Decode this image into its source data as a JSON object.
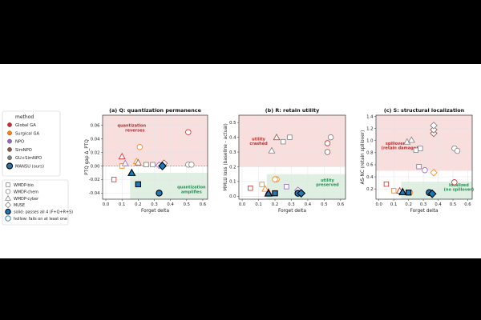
{
  "method_legend": {
    "title": "method",
    "items": [
      {
        "name": "Global GA",
        "color": "#d62728"
      },
      {
        "name": "Surgical GA",
        "color": "#ff7f0e"
      },
      {
        "name": "NPO",
        "color": "#9467bd"
      },
      {
        "name": "SimNPO",
        "color": "#8c564b"
      },
      {
        "name": "GU+SimNPO",
        "color": "#7f7f7f"
      },
      {
        "name": "MANSU (ours)",
        "color": "#1f77b4"
      }
    ]
  },
  "marker_legend": {
    "items": [
      {
        "name": "WMDP-bio",
        "marker": "square"
      },
      {
        "name": "WMDP-chem",
        "marker": "circle"
      },
      {
        "name": "WMDP-cyber",
        "marker": "triangle"
      },
      {
        "name": "MUSE",
        "marker": "diamond"
      },
      {
        "name": "solid: passes all 4 (F+Q+R+S)",
        "marker": "solid"
      },
      {
        "name": "hollow: fails on at least one",
        "marker": "hollow"
      }
    ]
  },
  "chart_data": [
    {
      "type": "scatter",
      "title": "(a) Q: quantization permanence",
      "xlabel": "Forget delta",
      "ylabel": "PTQ gap Δ_PTQ",
      "xlim": [
        -0.02,
        0.63
      ],
      "ylim": [
        -0.049,
        0.075
      ],
      "xticks": [
        0.0,
        0.1,
        0.2,
        0.3,
        0.4,
        0.5,
        0.6
      ],
      "yticks": [
        -0.04,
        -0.02,
        0.0,
        0.02,
        0.04,
        0.06
      ],
      "zero_line": 0,
      "region_upper": {
        "y_from": 0,
        "color": "#f9dede"
      },
      "region_lower": {
        "x_from": 0.15,
        "y_to": -0.01,
        "color": "#dff0e2"
      },
      "annotations": [
        {
          "text": "quantization",
          "x": 0.16,
          "y": 0.058,
          "color": "#b03030"
        },
        {
          "text": "reverses",
          "x": 0.18,
          "y": 0.051,
          "color": "#b03030"
        },
        {
          "text": "quantization",
          "x": 0.53,
          "y": -0.033,
          "color": "#2e8b57"
        },
        {
          "text": "amplifies",
          "x": 0.53,
          "y": -0.04,
          "color": "#2e8b57"
        }
      ],
      "points": [
        {
          "x": 0.05,
          "y": -0.02,
          "color": "#d62728",
          "marker": "square",
          "solid": false
        },
        {
          "x": 0.1,
          "y": 0.014,
          "color": "#d62728",
          "marker": "triangle",
          "solid": false
        },
        {
          "x": 0.51,
          "y": 0.05,
          "color": "#d62728",
          "marker": "circle",
          "solid": false
        },
        {
          "x": 0.1,
          "y": 0.0,
          "color": "#ff7f0e",
          "marker": "square",
          "solid": false
        },
        {
          "x": 0.21,
          "y": 0.028,
          "color": "#ff7f0e",
          "marker": "circle",
          "solid": false
        },
        {
          "x": 0.19,
          "y": 0.007,
          "color": "#ff7f0e",
          "marker": "triangle",
          "solid": false
        },
        {
          "x": 0.12,
          "y": 0.004,
          "color": "#9467bd",
          "marker": "triangle",
          "solid": false
        },
        {
          "x": 0.33,
          "y": 0.001,
          "color": "#9467bd",
          "marker": "diamond",
          "solid": false
        },
        {
          "x": 0.2,
          "y": 0.005,
          "color": "#8c564b",
          "marker": "triangle",
          "solid": false
        },
        {
          "x": 0.36,
          "y": 0.004,
          "color": "#8c564b",
          "marker": "diamond",
          "solid": false
        },
        {
          "x": 0.25,
          "y": 0.002,
          "color": "#7f7f7f",
          "marker": "square",
          "solid": false
        },
        {
          "x": 0.29,
          "y": 0.002,
          "color": "#7f7f7f",
          "marker": "square",
          "solid": false
        },
        {
          "x": 0.51,
          "y": 0.002,
          "color": "#7f7f7f",
          "marker": "circle",
          "solid": false
        },
        {
          "x": 0.53,
          "y": 0.002,
          "color": "#7f7f7f",
          "marker": "circle",
          "solid": false
        },
        {
          "x": 0.16,
          "y": -0.01,
          "color": "#1f77b4",
          "marker": "triangle",
          "solid": true
        },
        {
          "x": 0.2,
          "y": -0.027,
          "color": "#1f77b4",
          "marker": "square",
          "solid": true
        },
        {
          "x": 0.33,
          "y": -0.04,
          "color": "#1f77b4",
          "marker": "circle",
          "solid": true
        },
        {
          "x": 0.35,
          "y": 0.0,
          "color": "#1f77b4",
          "marker": "diamond",
          "solid": true
        }
      ]
    },
    {
      "type": "scatter",
      "title": "(b) R: retain utility",
      "xlabel": "Forget delta",
      "ylabel": "MMLU loss (baseline - actual)",
      "xlim": [
        -0.02,
        0.63
      ],
      "ylim": [
        -0.02,
        0.55
      ],
      "xticks": [
        0.0,
        0.1,
        0.2,
        0.3,
        0.4,
        0.5,
        0.6
      ],
      "yticks": [
        0.0,
        0.1,
        0.2,
        0.3,
        0.4,
        0.5
      ],
      "zero_line": null,
      "region_upper": {
        "y_from": 0.2,
        "color": "#f9dede"
      },
      "region_lower": {
        "x_from": 0.15,
        "y_to": 0.15,
        "color": "#dff0e2"
      },
      "annotations": [
        {
          "text": "utility",
          "x": 0.1,
          "y": 0.38,
          "color": "#b03030"
        },
        {
          "text": "crashed",
          "x": 0.1,
          "y": 0.35,
          "color": "#b03030"
        },
        {
          "text": "utility",
          "x": 0.52,
          "y": 0.1,
          "color": "#2e8b57"
        },
        {
          "text": "preserved",
          "x": 0.52,
          "y": 0.07,
          "color": "#2e8b57"
        }
      ],
      "points": [
        {
          "x": 0.05,
          "y": 0.055,
          "color": "#d62728",
          "marker": "square",
          "solid": false
        },
        {
          "x": 0.16,
          "y": 0.03,
          "color": "#d62728",
          "marker": "triangle",
          "solid": false
        },
        {
          "x": 0.52,
          "y": 0.36,
          "color": "#d62728",
          "marker": "circle",
          "solid": false
        },
        {
          "x": 0.12,
          "y": 0.08,
          "color": "#ff7f0e",
          "marker": "square",
          "solid": false
        },
        {
          "x": 0.21,
          "y": 0.115,
          "color": "#ff7f0e",
          "marker": "circle",
          "solid": false
        },
        {
          "x": 0.2,
          "y": 0.115,
          "color": "#ff7f0e",
          "marker": "circle",
          "solid": false
        },
        {
          "x": 0.14,
          "y": 0.05,
          "color": "#ff7f0e",
          "marker": "triangle",
          "solid": false
        },
        {
          "x": 0.27,
          "y": 0.065,
          "color": "#9467bd",
          "marker": "square",
          "solid": false
        },
        {
          "x": 0.34,
          "y": 0.04,
          "color": "#9467bd",
          "marker": "diamond",
          "solid": false
        },
        {
          "x": 0.21,
          "y": 0.4,
          "color": "#8c564b",
          "marker": "triangle",
          "solid": false
        },
        {
          "x": 0.52,
          "y": 0.3,
          "color": "#8c564b",
          "marker": "circle",
          "solid": false
        },
        {
          "x": 0.18,
          "y": 0.31,
          "color": "#7f7f7f",
          "marker": "triangle",
          "solid": false
        },
        {
          "x": 0.25,
          "y": 0.37,
          "color": "#7f7f7f",
          "marker": "square",
          "solid": false
        },
        {
          "x": 0.29,
          "y": 0.4,
          "color": "#7f7f7f",
          "marker": "square",
          "solid": false
        },
        {
          "x": 0.54,
          "y": 0.4,
          "color": "#7f7f7f",
          "marker": "circle",
          "solid": false
        },
        {
          "x": 0.16,
          "y": 0.02,
          "color": "#1f77b4",
          "marker": "triangle",
          "solid": true
        },
        {
          "x": 0.2,
          "y": 0.02,
          "color": "#1f77b4",
          "marker": "square",
          "solid": true
        },
        {
          "x": 0.34,
          "y": 0.02,
          "color": "#1f77b4",
          "marker": "circle",
          "solid": true
        },
        {
          "x": 0.36,
          "y": 0.02,
          "color": "#1f77b4",
          "marker": "diamond",
          "solid": true
        }
      ]
    },
    {
      "type": "scatter",
      "title": "(c) S: structural localization",
      "xlabel": "Forget delta",
      "ylabel": "AS-NC (retain spillover)",
      "xlim": [
        -0.02,
        0.63
      ],
      "ylim": [
        0.03,
        1.42
      ],
      "xticks": [
        0.0,
        0.1,
        0.2,
        0.3,
        0.4,
        0.5,
        0.6
      ],
      "yticks": [
        0.2,
        0.4,
        0.6,
        0.8,
        1.0,
        1.2,
        1.4
      ],
      "zero_line": null,
      "region_upper": {
        "y_from": 0.5,
        "color": "#f9dede"
      },
      "region_lower": {
        "x_from": 0.15,
        "y_to": 0.32,
        "color": "#dff0e2"
      },
      "annotations": [
        {
          "text": "spillover",
          "x": 0.11,
          "y": 0.93,
          "color": "#b03030"
        },
        {
          "text": "(retain damage)",
          "x": 0.14,
          "y": 0.86,
          "color": "#b03030"
        },
        {
          "text": "localized",
          "x": 0.54,
          "y": 0.24,
          "color": "#2e8b57"
        },
        {
          "text": "(no spillover)",
          "x": 0.54,
          "y": 0.17,
          "color": "#2e8b57"
        }
      ],
      "points": [
        {
          "x": 0.05,
          "y": 0.28,
          "color": "#d62728",
          "marker": "square",
          "solid": false
        },
        {
          "x": 0.14,
          "y": 0.17,
          "color": "#d62728",
          "marker": "triangle",
          "solid": false
        },
        {
          "x": 0.51,
          "y": 0.31,
          "color": "#d62728",
          "marker": "circle",
          "solid": false
        },
        {
          "x": 0.1,
          "y": 0.17,
          "color": "#ff7f0e",
          "marker": "square",
          "solid": false
        },
        {
          "x": 0.21,
          "y": 0.14,
          "color": "#ff7f0e",
          "marker": "circle",
          "solid": false
        },
        {
          "x": 0.37,
          "y": 0.47,
          "color": "#ff7f0e",
          "marker": "diamond",
          "solid": false
        },
        {
          "x": 0.27,
          "y": 0.57,
          "color": "#9467bd",
          "marker": "square",
          "solid": false
        },
        {
          "x": 0.31,
          "y": 0.51,
          "color": "#9467bd",
          "marker": "circle",
          "solid": false
        },
        {
          "x": 0.37,
          "y": 1.12,
          "color": "#8c564b",
          "marker": "diamond",
          "solid": false
        },
        {
          "x": 0.37,
          "y": 1.18,
          "color": "#8c564b",
          "marker": "diamond",
          "solid": false
        },
        {
          "x": 0.37,
          "y": 1.25,
          "color": "#7f7f7f",
          "marker": "diamond",
          "solid": false
        },
        {
          "x": 0.19,
          "y": 0.98,
          "color": "#7f7f7f",
          "marker": "triangle",
          "solid": false
        },
        {
          "x": 0.22,
          "y": 1.01,
          "color": "#7f7f7f",
          "marker": "triangle",
          "solid": false
        },
        {
          "x": 0.25,
          "y": 0.84,
          "color": "#7f7f7f",
          "marker": "square",
          "solid": false
        },
        {
          "x": 0.28,
          "y": 0.87,
          "color": "#7f7f7f",
          "marker": "square",
          "solid": false
        },
        {
          "x": 0.51,
          "y": 0.87,
          "color": "#7f7f7f",
          "marker": "circle",
          "solid": false
        },
        {
          "x": 0.53,
          "y": 0.83,
          "color": "#7f7f7f",
          "marker": "circle",
          "solid": false
        },
        {
          "x": 0.16,
          "y": 0.15,
          "color": "#1f77b4",
          "marker": "triangle",
          "solid": true
        },
        {
          "x": 0.2,
          "y": 0.14,
          "color": "#1f77b4",
          "marker": "square",
          "solid": true
        },
        {
          "x": 0.34,
          "y": 0.14,
          "color": "#1f77b4",
          "marker": "circle",
          "solid": true
        },
        {
          "x": 0.36,
          "y": 0.12,
          "color": "#1f77b4",
          "marker": "diamond",
          "solid": true
        }
      ]
    }
  ]
}
